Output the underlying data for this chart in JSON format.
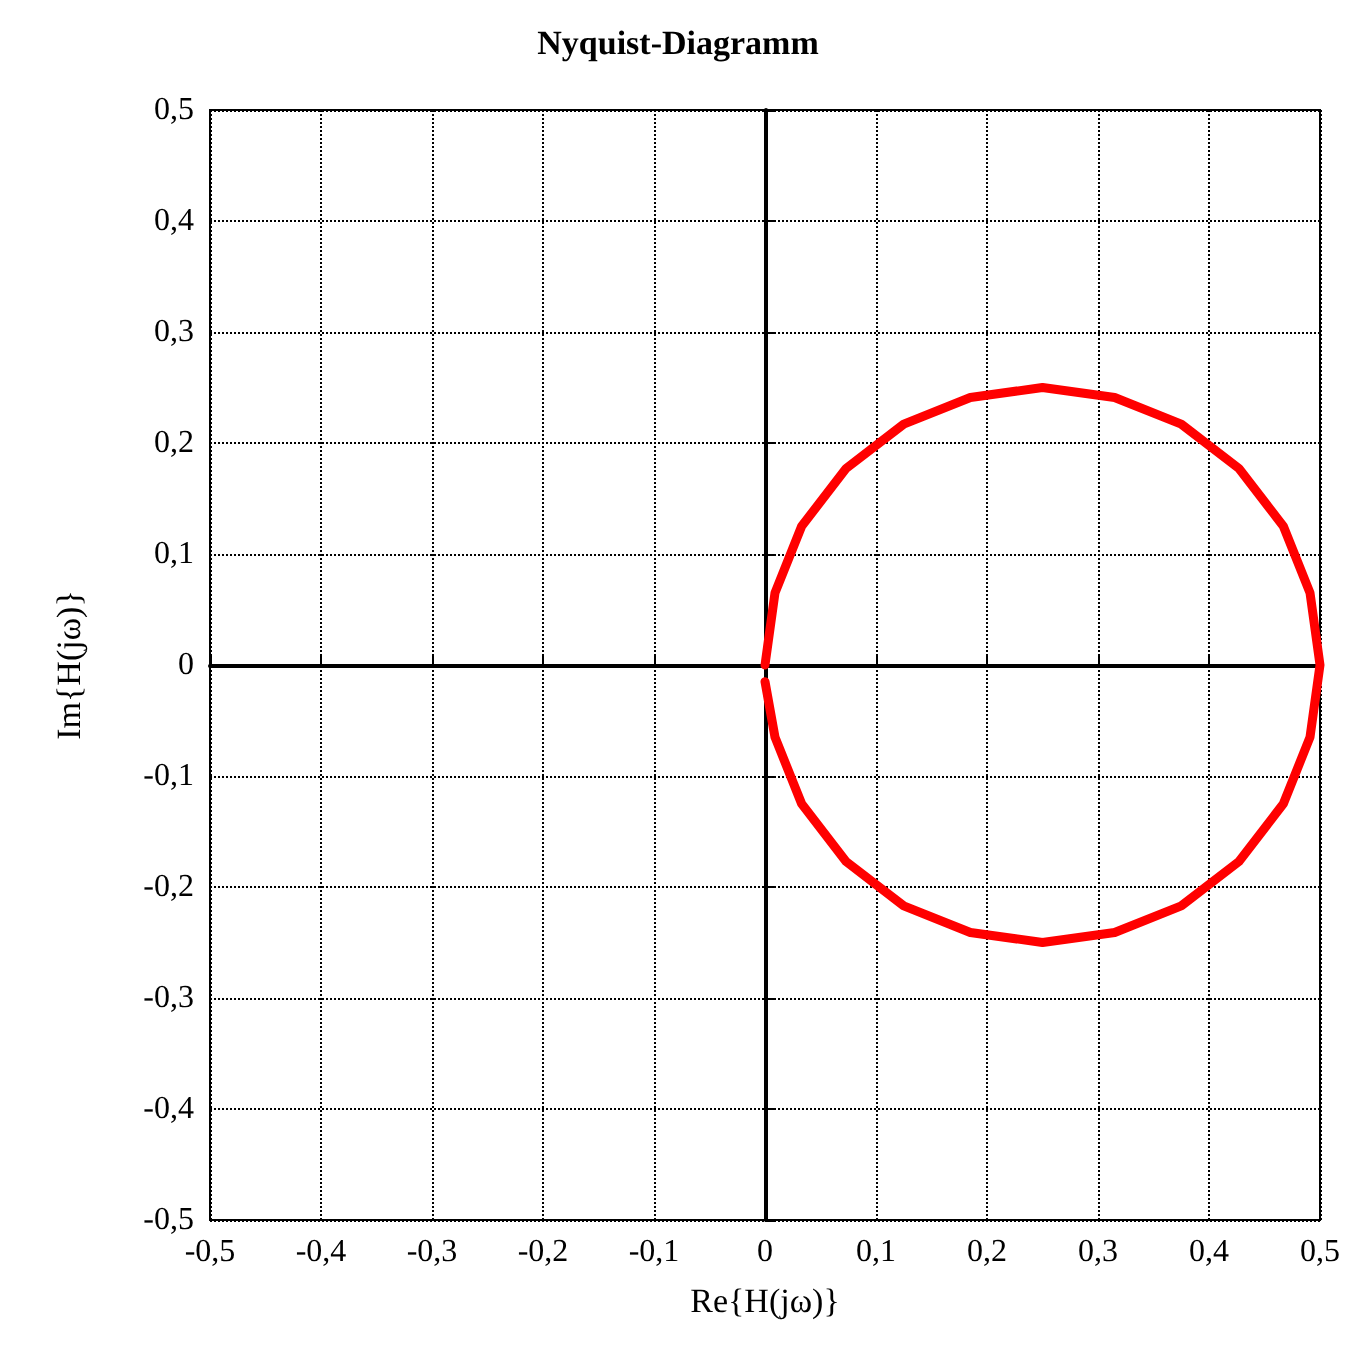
{
  "chart_data": {
    "type": "line",
    "title": "Nyquist-Diagramm",
    "xlabel": "Re{H(jω)}",
    "ylabel": "Im{H(jω)}",
    "x": [
      0,
      0.009,
      0.033,
      0.073,
      0.125,
      0.185,
      0.25,
      0.315,
      0.375,
      0.427,
      0.467,
      0.491,
      0.5,
      0.491,
      0.467,
      0.427,
      0.375,
      0.315,
      0.25,
      0.185,
      0.125,
      0.073,
      0.033,
      0.009,
      0
    ],
    "series": [
      {
        "color": "#ff0000",
        "values": [
          0,
          0.065,
          0.125,
          0.177,
          0.217,
          0.241,
          0.25,
          0.241,
          0.217,
          0.177,
          0.125,
          0.065,
          0,
          -0.065,
          -0.125,
          -0.177,
          -0.217,
          -0.241,
          -0.25,
          -0.241,
          -0.217,
          -0.177,
          -0.125,
          -0.065,
          -0.015
        ]
      }
    ],
    "xlim": [
      -0.5,
      0.5
    ],
    "ylim": [
      -0.5,
      0.5
    ],
    "xticks": [
      {
        "value": -0.5,
        "label": "-0,5"
      },
      {
        "value": -0.4,
        "label": "-0,4"
      },
      {
        "value": -0.3,
        "label": "-0,3"
      },
      {
        "value": -0.2,
        "label": "-0,2"
      },
      {
        "value": -0.1,
        "label": "-0,1"
      },
      0,
      {
        "value": 0.1,
        "label": "0,1"
      },
      {
        "value": 0.2,
        "label": "0,2"
      },
      {
        "value": 0.3,
        "label": "0,3"
      },
      {
        "value": 0.4,
        "label": "0,4"
      },
      {
        "value": 0.5,
        "label": "0,5"
      }
    ],
    "yticks": [
      {
        "value": -0.5,
        "label": "-0,5"
      },
      {
        "value": -0.4,
        "label": "-0,4"
      },
      {
        "value": -0.3,
        "label": "-0,3"
      },
      {
        "value": -0.2,
        "label": "-0,2"
      },
      {
        "value": -0.1,
        "label": "-0,1"
      },
      0,
      {
        "value": 0.1,
        "label": "0,1"
      },
      {
        "value": 0.2,
        "label": "0,2"
      },
      {
        "value": 0.3,
        "label": "0,3"
      },
      {
        "value": 0.4,
        "label": "0,4"
      },
      {
        "value": 0.5,
        "label": "0,5"
      }
    ],
    "grid": true,
    "marker": "none",
    "line_style": "solid"
  }
}
